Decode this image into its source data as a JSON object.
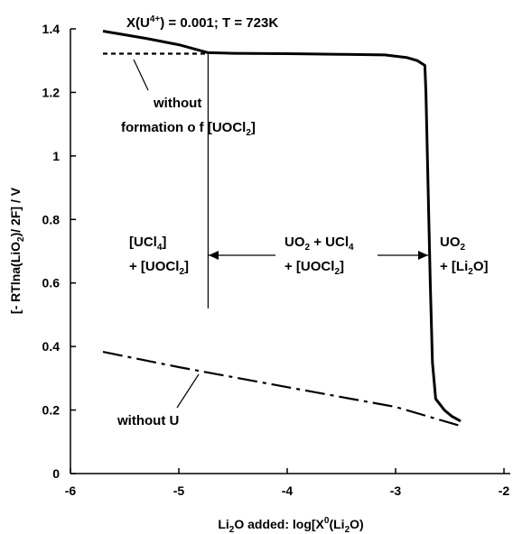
{
  "chart_data": {
    "type": "line",
    "title_parts": {
      "a": "X(U",
      "sup": "4+",
      "b": ") = 0.001; T = 723K"
    },
    "xlabel_parts": {
      "a": "Li",
      "sub1": "2",
      "b": "O added: log[X",
      "sup": "0",
      "c": "(Li",
      "sub2": "2",
      "d": "O)"
    },
    "ylabel_parts": {
      "a": "[- RTlna(LiO",
      "sub": "2",
      "b": ")/ 2F] / V"
    },
    "xlim": [
      -6,
      -2
    ],
    "ylim": [
      0,
      1.4
    ],
    "xticks": [
      "-6",
      "-5",
      "-4",
      "-3",
      "-2"
    ],
    "yticks": [
      "0",
      "0.2",
      "0.4",
      "0.6",
      "0.8",
      "1",
      "1.2",
      "1.4"
    ],
    "grid": false,
    "series": [
      {
        "style": "solid",
        "x": [
          -5.7,
          -5.3,
          -5.0,
          -4.73,
          -4.5,
          -4.0,
          -3.5,
          -3.1,
          -2.9,
          -2.8,
          -2.73,
          -2.72,
          -2.7,
          -2.68,
          -2.66,
          -2.63,
          -2.55,
          -2.48,
          -2.4
        ],
        "y": [
          1.393,
          1.37,
          1.35,
          1.325,
          1.323,
          1.322,
          1.32,
          1.318,
          1.31,
          1.3,
          1.285,
          1.2,
          0.9,
          0.6,
          0.35,
          0.235,
          0.2,
          0.18,
          0.165
        ]
      },
      {
        "style": "dotted",
        "x": [
          -5.7,
          -4.73
        ],
        "y": [
          1.322,
          1.322
        ]
      },
      {
        "style": "dash-dot",
        "x": [
          -5.7,
          -5.0,
          -4.0,
          -3.0,
          -2.4
        ],
        "y": [
          0.383,
          0.335,
          0.272,
          0.21,
          0.15
        ]
      }
    ],
    "divider_x": -4.73,
    "divider_y": [
      0.52,
      1.325
    ],
    "annotations": {
      "without_formation_1": "without",
      "without_formation_2a": "formation o f [UOCl",
      "without_formation_sub": "2",
      "without_formation_2b": "]",
      "without_u": "without U",
      "left_region_1a": "[UCl",
      "left_region_1sub": "4",
      "left_region_1b": "]",
      "left_region_2a": "+ [UOCl",
      "left_region_2sub": "2",
      "left_region_2b": "]",
      "mid_region_1a": "UO",
      "mid_region_1sub": "2",
      "mid_region_1b": " + UCl",
      "mid_region_1sub2": "4",
      "mid_region_2a": "+ [UOCl",
      "mid_region_2sub": "2",
      "mid_region_2b": "]",
      "right_region_1a": "UO",
      "right_region_1sub": "2",
      "right_region_2a": "+ [Li",
      "right_region_2sub": "2",
      "right_region_2b": "O]"
    }
  }
}
